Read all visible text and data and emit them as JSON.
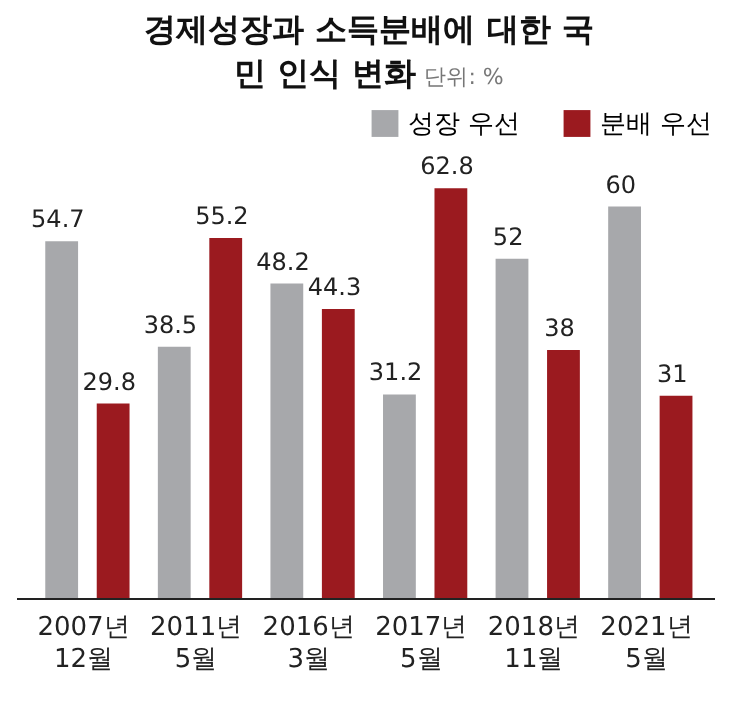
{
  "chart_data": {
    "type": "bar",
    "title": "경제성장과 소득분배에 대한 국민 인식 변화",
    "subtitle": "단위: %",
    "categories": [
      "2007년 12월",
      "2011년 5월",
      "2016년 3월",
      "2017년 5월",
      "2018년 11월",
      "2021년 5월"
    ],
    "series": [
      {
        "name": "성장 우선",
        "color": "#a7a8ab",
        "values": [
          54.7,
          38.5,
          48.2,
          31.2,
          52,
          60
        ]
      },
      {
        "name": "분배 우선",
        "color": "#9b1a1f",
        "values": [
          29.8,
          55.2,
          44.3,
          62.8,
          38,
          31
        ]
      }
    ],
    "data_labels": true,
    "legend": "top right",
    "grid": false
  }
}
